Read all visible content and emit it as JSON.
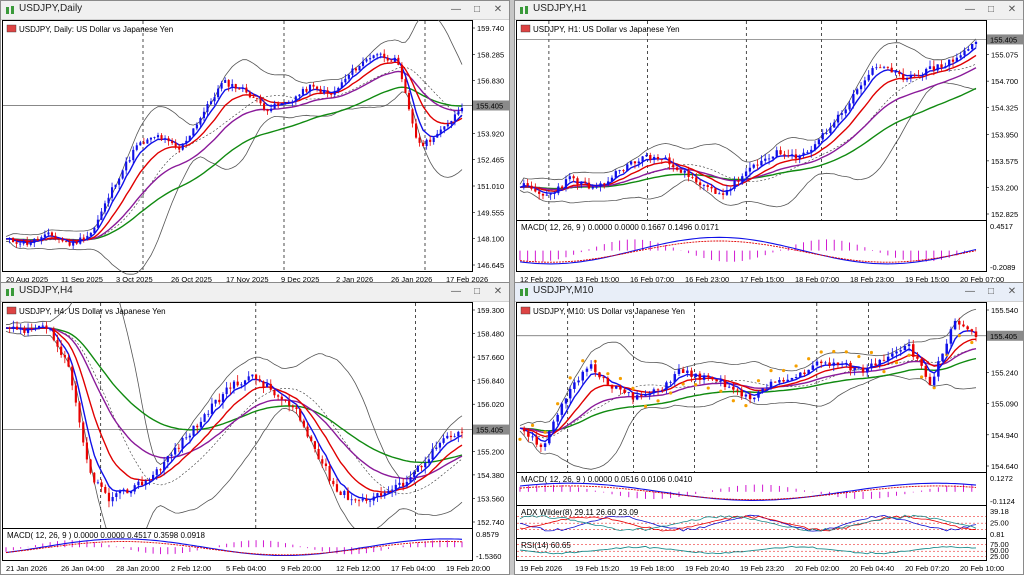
{
  "colors": {
    "bull": "#1010e8",
    "bear": "#e80000",
    "ma_red": "#e00000",
    "ma_purple": "#8a1a9a",
    "ma_green": "#108a10",
    "band": "#555555",
    "macd_hist": "#cc00cc",
    "macd_signal": "#e00000",
    "adx": "#1010d0",
    "price_line": "#606060"
  },
  "charts": [
    {
      "title": "USDJPY,Daily",
      "label": "USDJPY, Daily:  US Dollar vs Japanese Yen",
      "current_price": "155.405",
      "price_ticks": [
        "159.740",
        "158.285",
        "156.830",
        "155.405",
        "153.920",
        "152.465",
        "151.010",
        "149.555",
        "148.100",
        "146.645"
      ],
      "time_ticks": [
        "20 Aug 2025",
        "11 Sep 2025",
        "3 Oct 2025",
        "26 Oct 2025",
        "17 Nov 2025",
        "9 Dec 2025",
        "2 Jan 2026",
        "26 Jan 2026",
        "17 Feb 2026"
      ],
      "indicators": []
    },
    {
      "title": "USDJPY,H1",
      "label": "USDJPY, H1:  US Dollar vs Japanese Yen",
      "current_price": "155.405",
      "price_ticks": [
        "155.405",
        "155.075",
        "154.700",
        "154.325",
        "153.950",
        "153.575",
        "153.200",
        "152.825"
      ],
      "time_ticks": [
        "12 Feb 2026",
        "13 Feb 15:00",
        "16 Feb 07:00",
        "16 Feb 23:00",
        "17 Feb 15:00",
        "18 Feb 07:00",
        "18 Feb 23:00",
        "19 Feb 15:00",
        "20 Feb 07:00"
      ],
      "indicators": [
        {
          "label": "MACD( 12, 26, 9 ) 0.0000 0.0000 0.1667 0.1496 0.0171",
          "ticks": [
            "0.4517",
            "-0.2089"
          ]
        }
      ]
    },
    {
      "title": "USDJPY,H4",
      "label": "USDJPY, H4:  US Dollar vs Japanese Yen",
      "current_price": "155.405",
      "price_ticks": [
        "159.300",
        "158.480",
        "157.660",
        "156.840",
        "156.020",
        "155.405",
        "155.200",
        "154.380",
        "153.560",
        "152.740"
      ],
      "time_ticks": [
        "21 Jan 2026",
        "26 Jan 04:00",
        "28 Jan 20:00",
        "2 Feb 12:00",
        "5 Feb 04:00",
        "9 Feb 20:00",
        "12 Feb 12:00",
        "17 Feb 04:00",
        "19 Feb 20:00"
      ],
      "indicators": [
        {
          "label": "MACD( 12, 26, 9 ) 0.0000 0.0000 0.4517 0.3598 0.0918",
          "ticks": [
            "0.8579",
            "-1.5360"
          ]
        }
      ]
    },
    {
      "title": "USDJPY,M10",
      "label": "USDJPY, M10:  US Dollar vs Japanese Yen",
      "current_price": "155.405",
      "price_ticks": [
        "155.540",
        "155.405",
        "155.240",
        "155.090",
        "154.940",
        "154.640"
      ],
      "time_ticks": [
        "19 Feb 2026",
        "19 Feb 15:20",
        "19 Feb 18:00",
        "19 Feb 20:40",
        "19 Feb 23:20",
        "20 Feb 02:00",
        "20 Feb 04:40",
        "20 Feb 07:20",
        "20 Feb 10:00"
      ],
      "indicators": [
        {
          "label": "MACD( 12, 26, 9 ) 0.0000 0.0516 0.0106 0.0410",
          "ticks": [
            "0.1272",
            "-0.1124"
          ]
        },
        {
          "label": "ADX Wilder(8) 29.11 26.60 23.09",
          "ticks": [
            "39.18",
            "25.00",
            "0.81"
          ]
        },
        {
          "label": "RSI(14) 60.65",
          "ticks": [
            "75.00",
            "50.00",
            "25.00"
          ]
        }
      ]
    }
  ]
}
